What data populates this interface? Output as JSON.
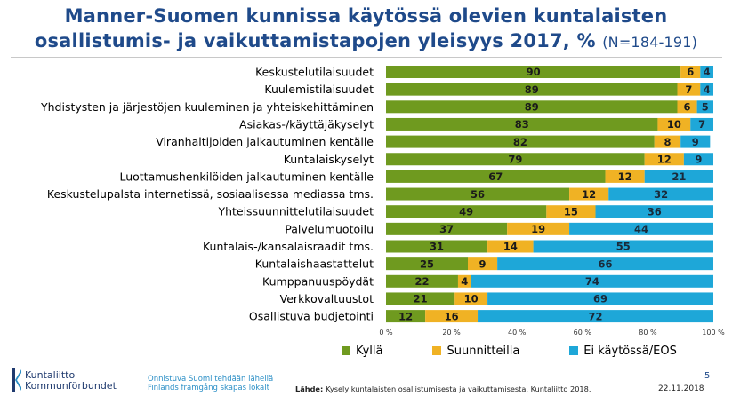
{
  "title_line1": "Manner-Suomen kunnissa käytössä olevien kuntalaisten",
  "title_line2": "osallistumis- ja vaikuttamistapojen yleisyys 2017, %",
  "title_n": "(N=184-191)",
  "colors": {
    "kylla": "#6f9a1f",
    "suunnitteilla": "#f0b224",
    "ei": "#1ea7d8",
    "title": "#1f4a8a"
  },
  "chart_data": {
    "type": "bar",
    "orientation": "horizontal",
    "stacked": true,
    "categories": [
      "Keskustelutilaisuudet",
      "Kuulemistilaisuudet",
      "Yhdistysten ja järjestöjen kuuleminen ja yhteiskehittäminen",
      "Asiakas-/käyttäjäkyselyt",
      "Viranhaltijoiden jalkautuminen kentälle",
      "Kuntalaiskyselyt",
      "Luottamushenkilöiden jalkautuminen kentälle",
      "Keskustelupalsta internetissä, sosiaalisessa mediassa tms.",
      "Yhteissuunnittelutilaisuudet",
      "Palvelumuotoilu",
      "Kuntalais-/kansalaisraadit tms.",
      "Kuntalaishaastattelut",
      "Kumppanuuspöydät",
      "Verkkovaltuustot",
      "Osallistuva budjetointi"
    ],
    "series": [
      {
        "name": "Kyllä",
        "values": [
          90,
          89,
          89,
          83,
          82,
          79,
          67,
          56,
          49,
          37,
          31,
          25,
          22,
          21,
          12
        ]
      },
      {
        "name": "Suunnitteilla",
        "values": [
          6,
          7,
          6,
          10,
          8,
          12,
          12,
          12,
          15,
          19,
          14,
          9,
          4,
          10,
          16
        ]
      },
      {
        "name": "Ei käytössä/EOS",
        "values": [
          4,
          4,
          5,
          7,
          9,
          9,
          21,
          32,
          36,
          44,
          55,
          66,
          74,
          69,
          72
        ]
      }
    ],
    "xlim": [
      0,
      100
    ],
    "xticks": [
      "0 %",
      "20 %",
      "40 %",
      "60 %",
      "80 %",
      "100 %"
    ],
    "legend_position": "bottom"
  },
  "footer": {
    "logo_line1": "Kuntaliitto",
    "logo_line2": "Kommunförbundet",
    "slogan_line1": "Onnistuva Suomi tehdään lähellä",
    "slogan_line2": "Finlands framgång skapas lokalt",
    "source_label": "Lähde:",
    "source_text": "Kysely kuntalaisten osallistumisesta ja vaikuttamisesta, Kuntaliitto 2018.",
    "page_number": "5",
    "date": "22.11.2018"
  }
}
